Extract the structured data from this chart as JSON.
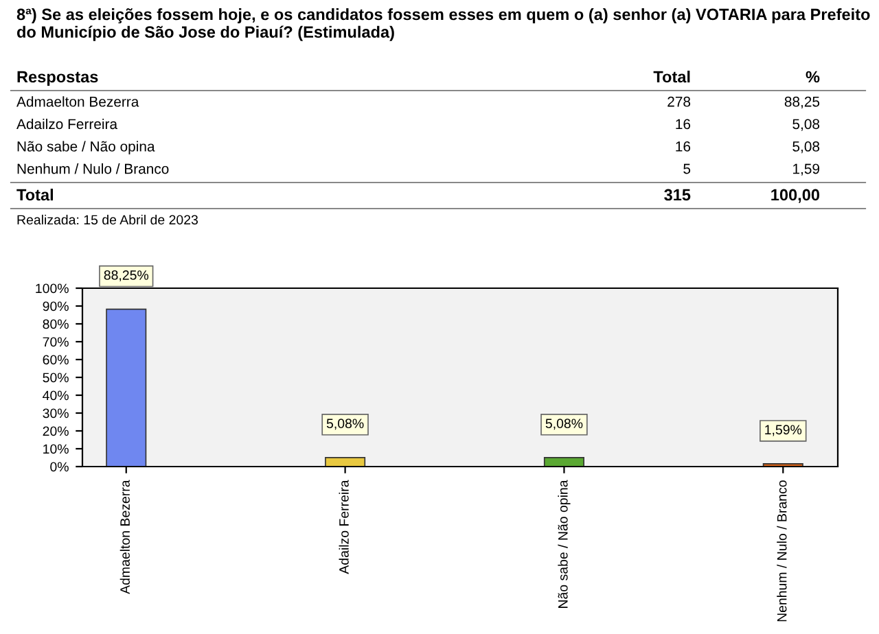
{
  "chart_data": [
    {
      "type": "other",
      "title": "8ª) Se as eleições fossem hoje, e os candidatos fossem esses em quem o (a) senhor (a) VOTARIA para Prefeito do Município de São Jose do Piauí? (Estimulada)",
      "xlabel": "Respostas",
      "categories": [
        "Admaelton Bezerra",
        "Adailzo Ferreira",
        "Não sabe / Não opina",
        "Nenhum / Nulo / Branco",
        "Total"
      ],
      "data_labels": true,
      "series": [
        {
          "name": "Total",
          "values": [
            278,
            16,
            16,
            5,
            315
          ]
        },
        {
          "name": "%",
          "values": [
            88.25,
            5.08,
            5.08,
            1.59,
            100.0
          ],
          "value_labels": [
            "88,25",
            "5,08",
            "5,08",
            "1,59",
            "100,00"
          ]
        }
      ],
      "annotations": [
        "Realizada: 15 de Abril de 2023"
      ]
    },
    {
      "type": "bar",
      "categories": [
        "Admaelton Bezerra",
        "Adailzo Ferreira",
        "Não sabe / Não opina",
        "Nenhum / Nulo / Branco"
      ],
      "values": [
        88.25,
        5.08,
        5.08,
        1.59
      ],
      "colors": [
        "#6f87f0",
        "#e8c840",
        "#5aa832",
        "#d4621a"
      ],
      "value_labels": [
        "88,25%",
        "5,08%",
        "5,08%",
        "1,59%"
      ],
      "ylim": [
        0,
        100
      ],
      "yticks": [
        {
          "value": 0,
          "label": "0%"
        },
        {
          "value": 10,
          "label": "10%"
        },
        {
          "value": 20,
          "label": "20%"
        },
        {
          "value": 30,
          "label": "30%"
        },
        {
          "value": 40,
          "label": "40%"
        },
        {
          "value": 50,
          "label": "50%"
        },
        {
          "value": 60,
          "label": "60%"
        },
        {
          "value": 70,
          "label": "70%"
        },
        {
          "value": 80,
          "label": "80%"
        },
        {
          "value": 90,
          "label": "90%"
        },
        {
          "value": 100,
          "label": "100%"
        }
      ]
    }
  ]
}
